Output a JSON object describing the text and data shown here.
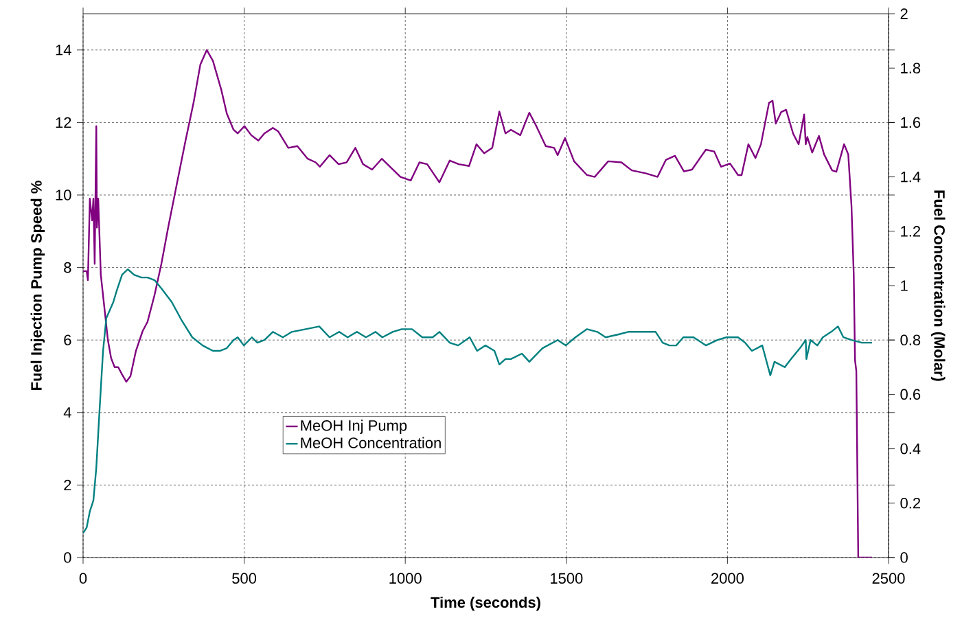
{
  "chart_data": {
    "type": "line",
    "xlabel": "Time (seconds)",
    "ylabel": "Fuel Injection Pump Speed %",
    "y2label": "Fuel Concentration (Molar)",
    "xlim": [
      0,
      2500
    ],
    "xticks": [
      0,
      500,
      1000,
      1500,
      2000,
      2500
    ],
    "ylim": [
      0,
      15
    ],
    "yticks": [
      0,
      2,
      4,
      6,
      8,
      10,
      12,
      14
    ],
    "y2lim": [
      0,
      2
    ],
    "y2ticks": [
      0,
      0.2,
      0.4,
      0.6,
      0.8,
      1,
      1.2,
      1.4,
      1.6,
      1.8,
      2
    ],
    "grid": true,
    "legend": "bottom",
    "series": [
      {
        "name": "MeOH Inj Pump",
        "color": "#800080",
        "axis": "y",
        "x": [
          0,
          11,
          15,
          21,
          28,
          32,
          36,
          41,
          43,
          47,
          55,
          66,
          77,
          87,
          98,
          109,
          121,
          134,
          147,
          164,
          185,
          200,
          222,
          243,
          264,
          292,
          318,
          343,
          364,
          384,
          403,
          429,
          446,
          467,
          480,
          501,
          522,
          544,
          563,
          589,
          606,
          637,
          665,
          697,
          722,
          735,
          765,
          793,
          818,
          845,
          869,
          897,
          927,
          956,
          985,
          1017,
          1044,
          1068,
          1106,
          1138,
          1166,
          1198,
          1221,
          1245,
          1270,
          1292,
          1311,
          1328,
          1357,
          1385,
          1404,
          1436,
          1462,
          1473,
          1496,
          1524,
          1564,
          1588,
          1630,
          1671,
          1703,
          1746,
          1783,
          1809,
          1837,
          1865,
          1890,
          1933,
          1959,
          1980,
          2008,
          2033,
          2044,
          2065,
          2087,
          2104,
          2129,
          2140,
          2150,
          2167,
          2182,
          2204,
          2221,
          2238,
          2243,
          2248,
          2263,
          2284,
          2300,
          2325,
          2338,
          2362,
          2375,
          2385,
          2392,
          2396,
          2400,
          2406,
          2449
        ],
        "values": [
          7.9,
          7.9,
          7.65,
          9.9,
          9.3,
          9.9,
          8.1,
          11.9,
          9.1,
          9.9,
          7.8,
          6.9,
          6.0,
          5.5,
          5.25,
          5.25,
          5.05,
          4.85,
          5.0,
          5.7,
          6.25,
          6.5,
          7.25,
          8.1,
          9.1,
          10.35,
          11.5,
          12.55,
          13.6,
          14.0,
          13.7,
          12.9,
          12.25,
          11.8,
          11.7,
          11.9,
          11.65,
          11.5,
          11.7,
          11.85,
          11.75,
          11.3,
          11.35,
          11.0,
          10.9,
          10.78,
          11.1,
          10.85,
          10.9,
          11.3,
          10.85,
          10.7,
          11.0,
          10.75,
          10.5,
          10.4,
          10.9,
          10.85,
          10.35,
          10.95,
          10.85,
          10.8,
          11.4,
          11.15,
          11.3,
          12.3,
          11.7,
          11.8,
          11.65,
          12.27,
          11.95,
          11.35,
          11.3,
          11.1,
          11.57,
          10.93,
          10.55,
          10.5,
          10.93,
          10.9,
          10.68,
          10.6,
          10.5,
          10.97,
          11.08,
          10.65,
          10.7,
          11.25,
          11.2,
          10.78,
          10.87,
          10.55,
          10.55,
          11.4,
          11.02,
          11.4,
          12.54,
          12.6,
          11.97,
          12.29,
          12.35,
          11.69,
          11.4,
          12.22,
          11.4,
          11.6,
          11.17,
          11.63,
          11.12,
          10.68,
          10.64,
          11.4,
          11.12,
          9.7,
          7.8,
          5.44,
          5.15,
          0,
          0
        ]
      },
      {
        "name": "MeOH Concentration",
        "color": "#008080",
        "axis": "y2",
        "x": [
          0,
          11,
          21,
          32,
          41,
          51,
          62,
          72,
          94,
          104,
          121,
          139,
          158,
          181,
          200,
          222,
          243,
          275,
          307,
          339,
          371,
          403,
          424,
          446,
          467,
          480,
          499,
          524,
          541,
          563,
          589,
          620,
          648,
          691,
          733,
          765,
          795,
          821,
          850,
          878,
          908,
          929,
          961,
          989,
          1021,
          1053,
          1085,
          1106,
          1138,
          1164,
          1200,
          1223,
          1249,
          1277,
          1292,
          1311,
          1328,
          1362,
          1385,
          1426,
          1473,
          1498,
          1528,
          1564,
          1596,
          1622,
          1660,
          1692,
          1735,
          1777,
          1799,
          1820,
          1841,
          1863,
          1895,
          1933,
          1969,
          1997,
          2033,
          2055,
          2076,
          2108,
          2133,
          2146,
          2178,
          2197,
          2225,
          2243,
          2245,
          2258,
          2279,
          2296,
          2322,
          2343,
          2360,
          2385,
          2417,
          2449
        ],
        "values": [
          0.09,
          0.11,
          0.17,
          0.21,
          0.33,
          0.54,
          0.76,
          0.88,
          0.94,
          0.98,
          1.04,
          1.06,
          1.04,
          1.03,
          1.03,
          1.02,
          0.99,
          0.94,
          0.87,
          0.81,
          0.78,
          0.76,
          0.76,
          0.77,
          0.8,
          0.81,
          0.78,
          0.81,
          0.79,
          0.8,
          0.83,
          0.81,
          0.83,
          0.84,
          0.85,
          0.81,
          0.83,
          0.81,
          0.83,
          0.81,
          0.83,
          0.81,
          0.83,
          0.84,
          0.84,
          0.81,
          0.81,
          0.83,
          0.79,
          0.78,
          0.81,
          0.76,
          0.78,
          0.76,
          0.71,
          0.73,
          0.73,
          0.75,
          0.72,
          0.77,
          0.8,
          0.78,
          0.81,
          0.84,
          0.83,
          0.81,
          0.82,
          0.83,
          0.83,
          0.83,
          0.79,
          0.78,
          0.78,
          0.81,
          0.81,
          0.78,
          0.8,
          0.81,
          0.81,
          0.79,
          0.76,
          0.78,
          0.67,
          0.72,
          0.7,
          0.73,
          0.77,
          0.8,
          0.73,
          0.8,
          0.78,
          0.81,
          0.83,
          0.85,
          0.81,
          0.8,
          0.79,
          0.79
        ]
      }
    ]
  }
}
